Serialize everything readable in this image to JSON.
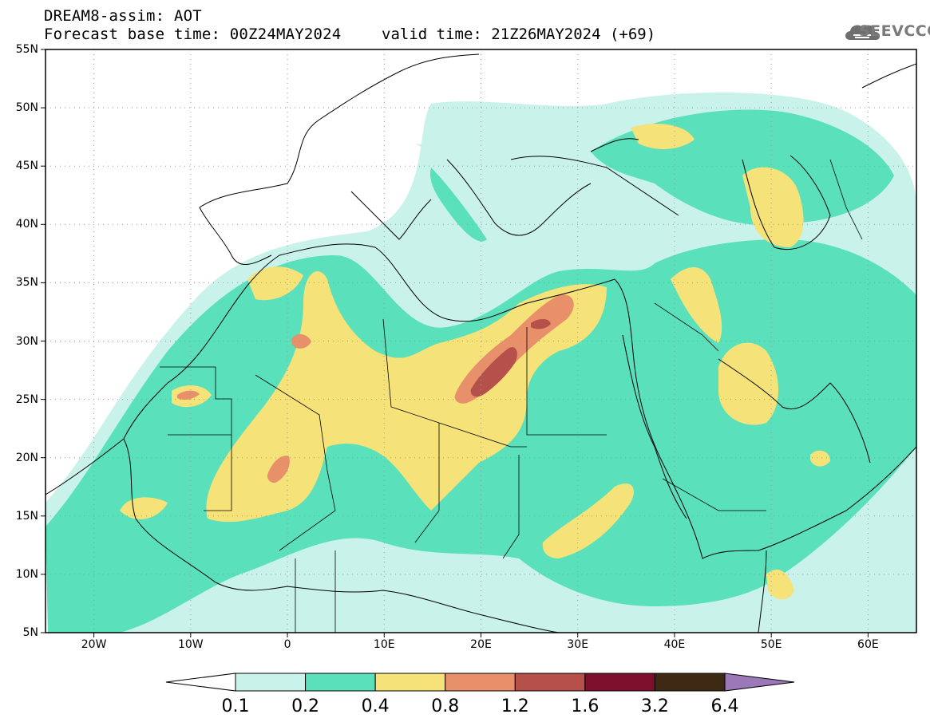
{
  "header": {
    "line1": "DREAM8-assim: AOT",
    "line2": "Forecast base time: 00Z24MAY2024",
    "valid": "valid time: 21Z26MAY2024 (+69)"
  },
  "logo": {
    "text": "SEEVCCC",
    "icon": "cloud-logo-icon"
  },
  "map": {
    "lat_labels": [
      "55N",
      "50N",
      "45N",
      "40N",
      "35N",
      "30N",
      "25N",
      "20N",
      "15N",
      "10N",
      "5N"
    ],
    "lon_labels": [
      "20W",
      "10W",
      "0",
      "10E",
      "20E",
      "30E",
      "40E",
      "50E",
      "60E"
    ],
    "lat_range": [
      5,
      55
    ],
    "lon_range": [
      -25,
      65
    ],
    "grid": "dotted"
  },
  "colorbar": {
    "labels": [
      "0.1",
      "0.2",
      "0.4",
      "0.8",
      "1.2",
      "1.6",
      "3.2",
      "6.4"
    ],
    "colors": [
      "#ffffff",
      "#c8f2ea",
      "#5ae0bb",
      "#f5e37a",
      "#e8906a",
      "#b5504a",
      "#7e0f2c",
      "#3e2a14",
      "#9b78b8"
    ]
  }
}
